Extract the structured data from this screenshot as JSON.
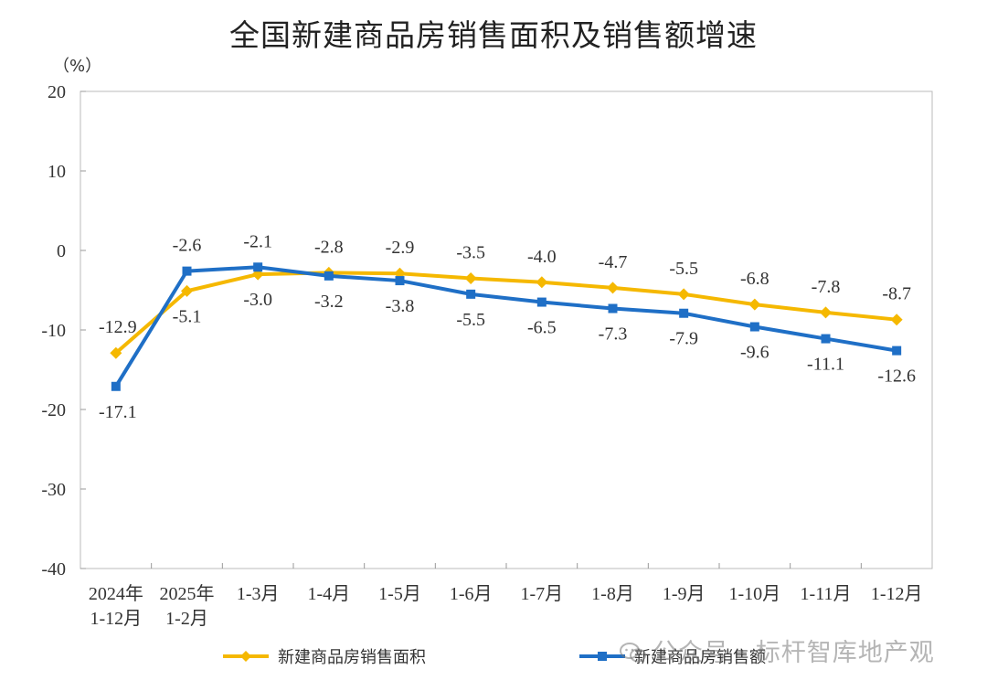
{
  "title": "全国新建商品房销售面积及销售额增速",
  "watermark_text": "公众号 · 标杆智库地产观",
  "colors": {
    "area_series": "#F5B800",
    "sales_series": "#1F6FC6",
    "axis": "#999999",
    "frame": "#BBBBBB"
  },
  "chart_data": {
    "type": "line",
    "title": "全国新建商品房销售面积及销售额增速",
    "ylabel": "（%）",
    "xlabel": "",
    "ylim": [
      -40,
      20
    ],
    "yticks": [
      20,
      10,
      0,
      -10,
      -20,
      -30,
      -40
    ],
    "grid": false,
    "legend_position": "bottom",
    "categories": [
      [
        "2024年",
        "1-12月"
      ],
      [
        "2025年",
        "1-2月"
      ],
      [
        "1-3月"
      ],
      [
        "1-4月"
      ],
      [
        "1-5月"
      ],
      [
        "1-6月"
      ],
      [
        "1-7月"
      ],
      [
        "1-8月"
      ],
      [
        "1-9月"
      ],
      [
        "1-10月"
      ],
      [
        "1-11月"
      ],
      [
        "1-12月"
      ]
    ],
    "series": [
      {
        "name": "新建商品房销售面积",
        "color": "#F5B800",
        "marker": "diamond",
        "values": [
          -12.9,
          -5.1,
          -3.0,
          -2.8,
          -2.9,
          -3.5,
          -4.0,
          -4.7,
          -5.5,
          -6.8,
          -7.8,
          -8.7
        ],
        "labels": [
          "-12.9",
          "-5.1",
          "-3.0",
          "-2.8",
          "-2.9",
          "-3.5",
          "-4.0",
          "-4.7",
          "-5.5",
          "-6.8",
          "-7.8",
          "-8.7"
        ]
      },
      {
        "name": "新建商品房销售额",
        "color": "#1F6FC6",
        "marker": "square",
        "values": [
          -17.1,
          -2.6,
          -2.1,
          -3.2,
          -3.8,
          -5.5,
          -6.5,
          -7.3,
          -7.9,
          -9.6,
          -11.1,
          -12.6
        ],
        "labels": [
          "-17.1",
          "-2.6",
          "-2.1",
          "-3.2",
          "-3.8",
          "-5.5",
          "-6.5",
          "-7.3",
          "-7.9",
          "-9.6",
          "-11.1",
          "-12.6"
        ]
      }
    ]
  }
}
